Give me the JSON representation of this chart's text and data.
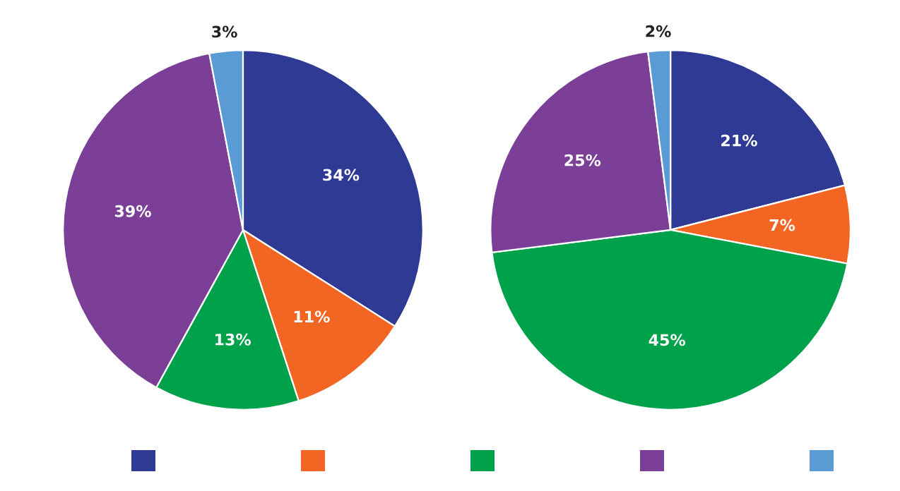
{
  "chart_data": [
    {
      "type": "pie",
      "categories": [
        null,
        null,
        null,
        null,
        null
      ],
      "values": [
        34,
        11,
        13,
        39,
        3
      ],
      "value_labels": [
        "34%",
        "11%",
        "13%",
        "39%",
        "3%"
      ],
      "colors": [
        "#2e3a93",
        "#f26522",
        "#00a14b",
        "#7b3f98",
        "#5a9bd5"
      ]
    },
    {
      "type": "pie",
      "categories": [
        null,
        null,
        null,
        null,
        null
      ],
      "values": [
        21,
        7,
        45,
        25,
        2
      ],
      "value_labels": [
        "21%",
        "7%",
        "45%",
        "25%",
        "2%"
      ],
      "colors": [
        "#2e3a93",
        "#f26522",
        "#00a14b",
        "#7b3f98",
        "#5a9bd5"
      ]
    }
  ]
}
